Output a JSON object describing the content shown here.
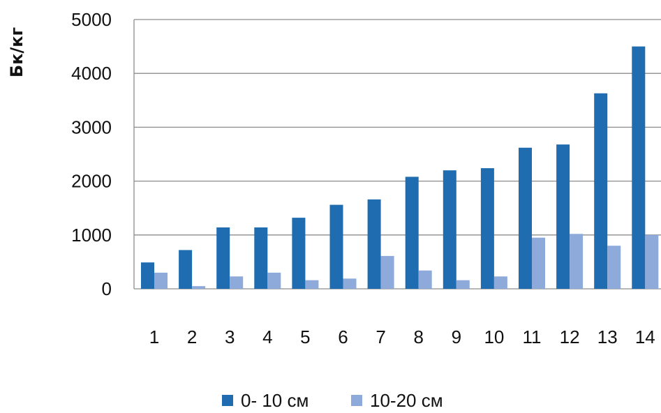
{
  "chart_data": {
    "type": "bar",
    "title": "",
    "xlabel": "",
    "ylabel": "Бк/кг",
    "categories": [
      "1",
      "2",
      "3",
      "4",
      "5",
      "6",
      "7",
      "8",
      "9",
      "10",
      "11",
      "12",
      "13",
      "14"
    ],
    "series": [
      {
        "name": "0- 10 см",
        "color": "#1f6db0",
        "values": [
          490,
          720,
          1140,
          1140,
          1320,
          1560,
          1660,
          2080,
          2200,
          2240,
          2620,
          2680,
          3630,
          4500
        ]
      },
      {
        "name": "10-20 см",
        "color": "#8eaadb",
        "values": [
          300,
          50,
          230,
          300,
          160,
          190,
          610,
          340,
          160,
          230,
          950,
          1020,
          800,
          1000
        ]
      }
    ],
    "ylim": [
      0,
      5000
    ],
    "yticks": [
      "0",
      "1000",
      "2000",
      "3000",
      "4000",
      "5000"
    ],
    "grid": true,
    "legend_position": "bottom"
  }
}
